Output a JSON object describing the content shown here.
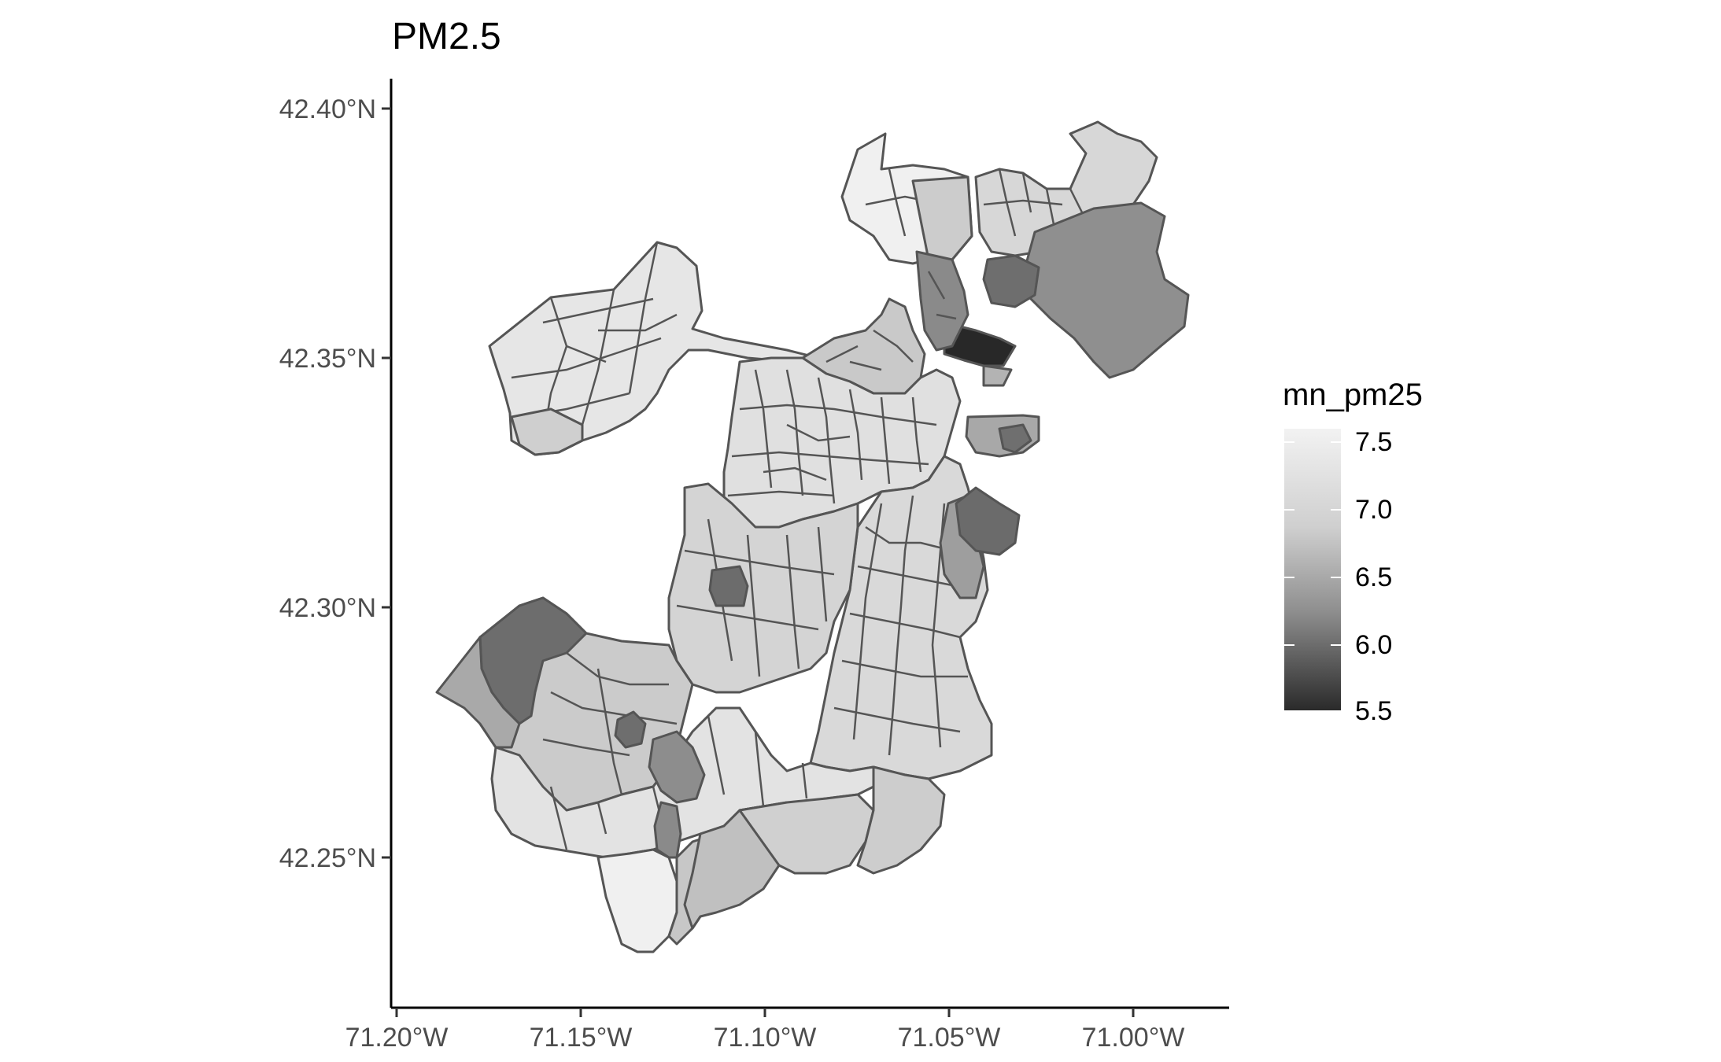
{
  "title": "PM2.5",
  "x_ticks": [
    "71.20°W",
    "71.15°W",
    "71.10°W",
    "71.05°W",
    "71.00°W"
  ],
  "y_ticks": [
    "42.40°N",
    "42.35°N",
    "42.30°N",
    "42.25°N"
  ],
  "legend": {
    "title": "mn_pm25",
    "labels": [
      "7.5",
      "7.0",
      "6.5",
      "6.0",
      "5.5"
    ],
    "color_low": "#2a2a2a",
    "color_high": "#f2f2f2",
    "range": [
      5.5,
      7.6
    ]
  },
  "chart_data": {
    "type": "choropleth",
    "title": "PM2.5",
    "fill_variable": "mn_pm25",
    "xlim": [
      "71.20°W",
      "70.97°W"
    ],
    "ylim": [
      "42.22°N",
      "42.41°N"
    ],
    "scale": "grayscale continuous, dark = low (5.5), light = high (7.5)"
  }
}
